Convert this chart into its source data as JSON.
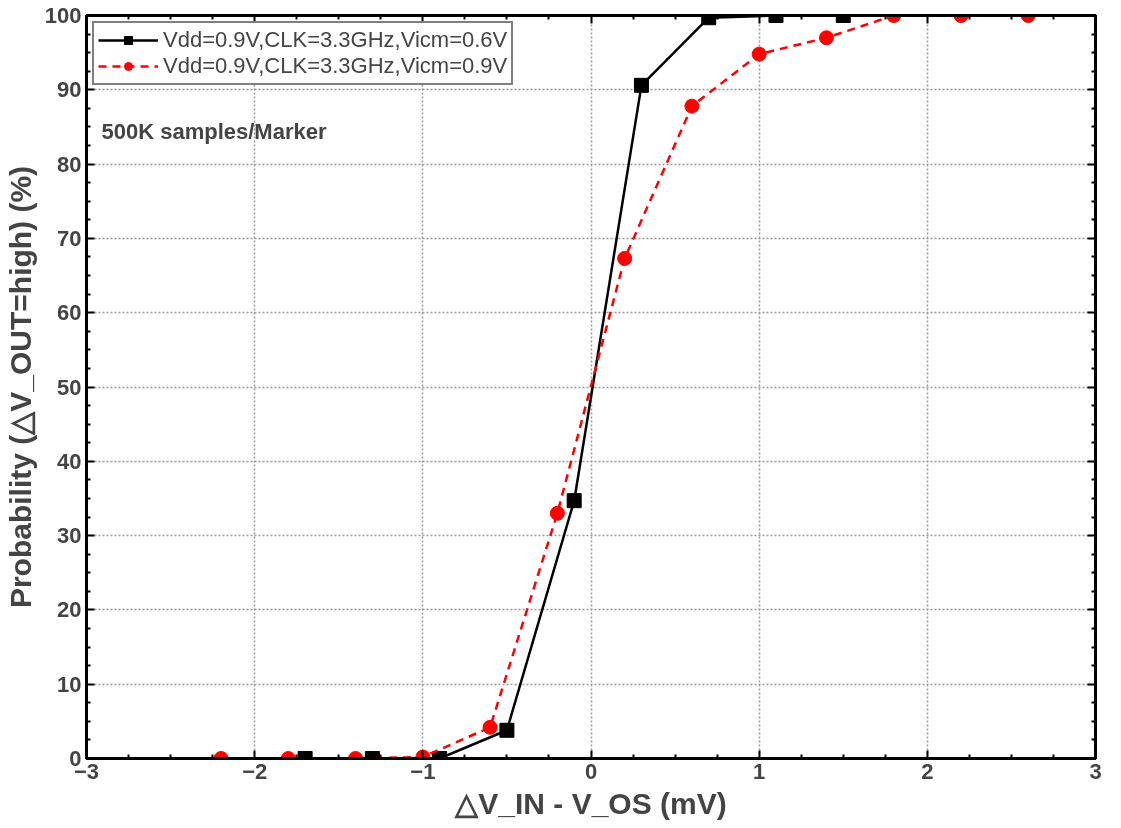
{
  "chart_data": {
    "type": "line",
    "xlabel": "△V_IN - V_OS (mV)",
    "ylabel": "Probability (△V_OUT=high) (%)",
    "annotations": [
      "500K samples/Marker"
    ],
    "series": [
      {
        "name": "Vdd=0.9V,CLK=3.3GHz,Vicm=0.6V",
        "color": "#000000",
        "marker": "square",
        "line_style": "solid",
        "x": [
          -1.7,
          -1.3,
          -0.9,
          -0.5,
          -0.1,
          0.3,
          0.7,
          1.1,
          1.5
        ],
        "values": [
          0,
          0,
          0,
          3.8,
          34.7,
          90.6,
          99.7,
          100,
          100
        ]
      },
      {
        "name": "Vdd=0.9V,CLK=3.3GHz,Vicm=0.9V",
        "color": "#ff0000",
        "marker": "circle",
        "line_style": "dashed",
        "x": [
          -2.2,
          -1.8,
          -1.4,
          -1.0,
          -0.6,
          -0.2,
          0.2,
          0.6,
          1.0,
          1.4,
          1.8,
          2.2,
          2.6
        ],
        "values": [
          0,
          0,
          0,
          0.2,
          4.2,
          33,
          67.3,
          87.8,
          94.8,
          97,
          100,
          100,
          100
        ]
      }
    ],
    "xlim": [
      -3,
      3
    ],
    "xticks": [
      -3,
      -2,
      -1,
      0,
      1,
      2,
      3
    ],
    "ylim": [
      0,
      100
    ],
    "yticks": [
      0,
      10,
      20,
      30,
      40,
      50,
      60,
      70,
      80,
      90,
      100
    ],
    "grid": true,
    "legend": "top left"
  }
}
